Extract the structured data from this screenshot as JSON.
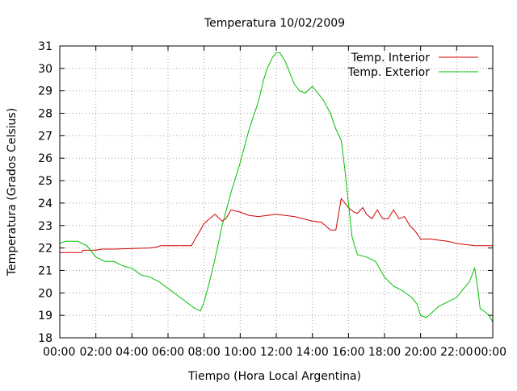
{
  "chart_data": {
    "type": "line",
    "title": "Temperatura 10/02/2009",
    "xlabel": "Tiempo (Hora Local Argentina)",
    "ylabel": "Temperatura (Grados Celsius)",
    "xlim": [
      0,
      24
    ],
    "ylim": [
      18,
      31
    ],
    "x_ticks": [
      0,
      2,
      4,
      6,
      8,
      10,
      12,
      14,
      16,
      18,
      20,
      22,
      24
    ],
    "x_tick_labels": [
      "00:00",
      "02:00",
      "04:00",
      "06:00",
      "08:00",
      "10:00",
      "12:00",
      "14:00",
      "16:00",
      "18:00",
      "20:00",
      "22:00",
      "00:00"
    ],
    "y_ticks": [
      18,
      19,
      20,
      21,
      22,
      23,
      24,
      25,
      26,
      27,
      28,
      29,
      30,
      31
    ],
    "y_tick_labels": [
      "18",
      "19",
      "20",
      "21",
      "22",
      "23",
      "24",
      "25",
      "26",
      "27",
      "28",
      "29",
      "30",
      "31"
    ],
    "grid": true,
    "legend_position": "top-right",
    "series": [
      {
        "name": "Temp. Interior",
        "color": "#d00000",
        "x": [
          0,
          1.2,
          1.3,
          2.0,
          2.3,
          3.0,
          4.0,
          5.0,
          5.4,
          5.6,
          6.5,
          7.0,
          7.3,
          7.5,
          7.8,
          8.0,
          8.3,
          8.6,
          9.0,
          9.2,
          9.5,
          10.0,
          10.5,
          11.0,
          11.5,
          12.0,
          12.5,
          13.0,
          13.5,
          14.0,
          14.5,
          15.0,
          15.3,
          15.6,
          15.8,
          16.0,
          16.3,
          16.5,
          16.8,
          17.0,
          17.3,
          17.6,
          17.9,
          18.2,
          18.5,
          18.8,
          19.1,
          19.4,
          19.7,
          20.0,
          20.5,
          21.0,
          21.5,
          22.0,
          22.5,
          23.0,
          24.0
        ],
        "values": [
          21.8,
          21.8,
          21.9,
          21.9,
          21.95,
          21.95,
          21.98,
          22.0,
          22.05,
          22.1,
          22.1,
          22.1,
          22.1,
          22.4,
          22.8,
          23.1,
          23.3,
          23.5,
          23.2,
          23.3,
          23.7,
          23.6,
          23.45,
          23.4,
          23.45,
          23.5,
          23.45,
          23.4,
          23.3,
          23.2,
          23.15,
          22.8,
          22.8,
          24.2,
          24.0,
          23.8,
          23.6,
          23.55,
          23.8,
          23.5,
          23.3,
          23.7,
          23.3,
          23.3,
          23.7,
          23.3,
          23.4,
          23.0,
          22.75,
          22.4,
          22.4,
          22.35,
          22.3,
          22.2,
          22.15,
          22.1,
          22.1
        ]
      },
      {
        "name": "Temp. Exterior",
        "color": "#00c000",
        "x": [
          0,
          0.3,
          1.0,
          1.5,
          2.0,
          2.5,
          3.0,
          3.5,
          4.0,
          4.5,
          5.0,
          5.5,
          6.0,
          6.5,
          7.0,
          7.5,
          7.8,
          8.0,
          8.3,
          8.6,
          9.0,
          9.5,
          10.0,
          10.5,
          11.0,
          11.3,
          11.5,
          11.8,
          12.0,
          12.2,
          12.5,
          12.8,
          13.0,
          13.3,
          13.6,
          14.0,
          14.3,
          14.6,
          15.0,
          15.3,
          15.6,
          15.8,
          16.0,
          16.2,
          16.5,
          17.0,
          17.5,
          18.0,
          18.5,
          19.0,
          19.5,
          19.8,
          20.0,
          20.3,
          20.6,
          21.0,
          21.5,
          22.0,
          22.4,
          22.7,
          23.0,
          23.2,
          23.3,
          23.5,
          23.8,
          24.0
        ],
        "values": [
          22.2,
          22.3,
          22.3,
          22.1,
          21.6,
          21.4,
          21.4,
          21.2,
          21.1,
          20.8,
          20.7,
          20.5,
          20.2,
          19.9,
          19.6,
          19.3,
          19.2,
          19.6,
          20.5,
          21.5,
          23.0,
          24.5,
          25.8,
          27.3,
          28.5,
          29.5,
          30.0,
          30.5,
          30.7,
          30.7,
          30.3,
          29.7,
          29.3,
          29.0,
          28.9,
          29.2,
          28.9,
          28.6,
          28.0,
          27.3,
          26.8,
          25.5,
          24.0,
          22.5,
          21.7,
          21.6,
          21.4,
          20.7,
          20.3,
          20.1,
          19.8,
          19.5,
          19.0,
          18.9,
          19.1,
          19.4,
          19.6,
          19.8,
          20.2,
          20.5,
          21.1,
          20.0,
          19.3,
          19.2,
          19.0,
          18.7
        ]
      }
    ]
  }
}
